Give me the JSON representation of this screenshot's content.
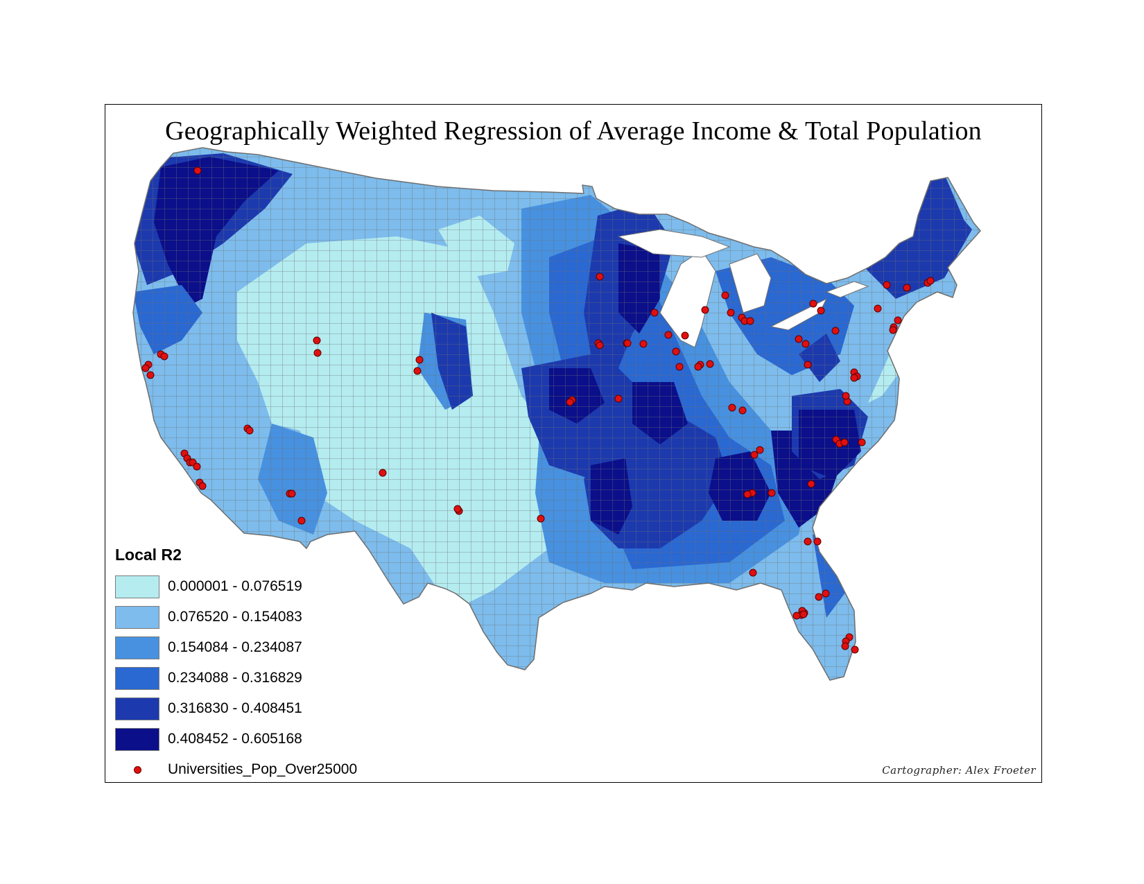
{
  "title": "Geographically Weighted Regression of Average Income & Total Population",
  "legend": {
    "title": "Local R2",
    "classes": [
      {
        "label": "0.000001 - 0.076519",
        "color": "#b4ecf0"
      },
      {
        "label": "0.076520 - 0.154083",
        "color": "#7dbcec"
      },
      {
        "label": "0.154084 - 0.234087",
        "color": "#4791e0"
      },
      {
        "label": "0.234088 - 0.316829",
        "color": "#2a68d2"
      },
      {
        "label": "0.316830 - 0.408451",
        "color": "#1c3aae"
      },
      {
        "label": "0.408452 - 0.605168",
        "color": "#0b0f8a"
      }
    ],
    "point_layer": {
      "label": "Universities_Pop_Over25000",
      "color": "#e01010"
    }
  },
  "credit": "Cartographer: Alex Froeter",
  "colors": {
    "county_border": "#6e6e6e",
    "background": "#ffffff",
    "frame": "#000000"
  }
}
